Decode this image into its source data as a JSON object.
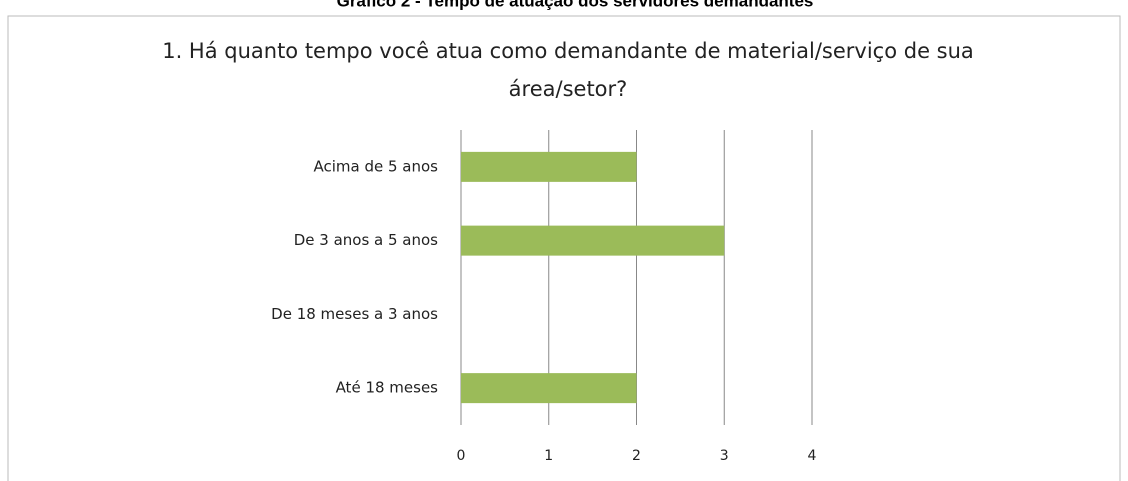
{
  "caption": "Gráfico 2 - Tempo de atuação dos servidores demandantes",
  "chart_data": {
    "type": "bar",
    "orientation": "horizontal",
    "title": [
      "1. Há quanto tempo você atua como demandante de material/serviço de sua",
      "área/setor?"
    ],
    "categories": [
      "Acima de 5 anos",
      "De 3 anos a 5 anos",
      "De 18 meses a 3 anos",
      "Até 18 meses"
    ],
    "values": [
      2,
      3,
      0,
      2
    ],
    "color": "#9bbb59",
    "xlim": [
      0,
      4
    ],
    "xticks": [
      0,
      1,
      2,
      3,
      4
    ],
    "grid": true
  }
}
